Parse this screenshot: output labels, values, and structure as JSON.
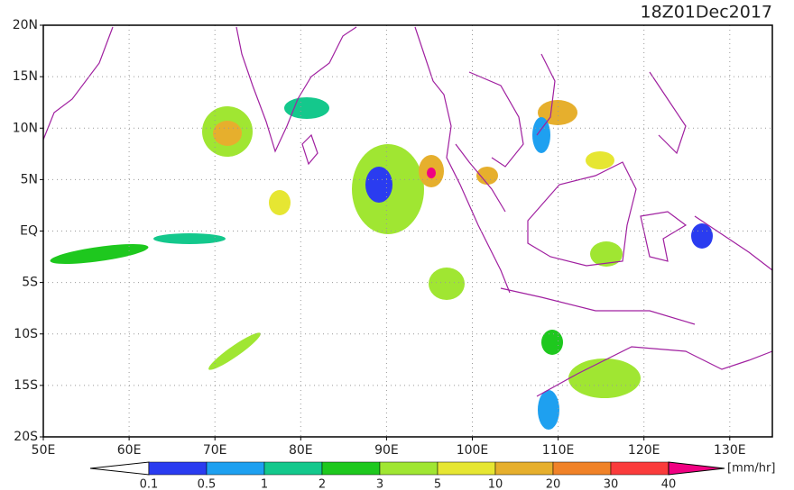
{
  "title": "18Z01Dec2017",
  "map": {
    "lat_labels": [
      "20N",
      "15N",
      "10N",
      "5N",
      "EQ",
      "5S",
      "10S",
      "15S",
      "20S"
    ],
    "lon_labels": [
      "50E",
      "60E",
      "70E",
      "80E",
      "90E",
      "100E",
      "110E",
      "120E",
      "130E"
    ]
  },
  "colorbar": {
    "labels": [
      "0.1",
      "0.5",
      "1",
      "2",
      "3",
      "5",
      "10",
      "20",
      "30",
      "40"
    ],
    "colors": [
      "#2a3cf0",
      "#1ea0f0",
      "#14c88c",
      "#1ec81e",
      "#a0e632",
      "#e6e632",
      "#e6af2d",
      "#f08228",
      "#fa3c3c"
    ],
    "under_color": "#ffffff",
    "over_color": "#f00082",
    "unit": "[mm/hr]"
  }
}
